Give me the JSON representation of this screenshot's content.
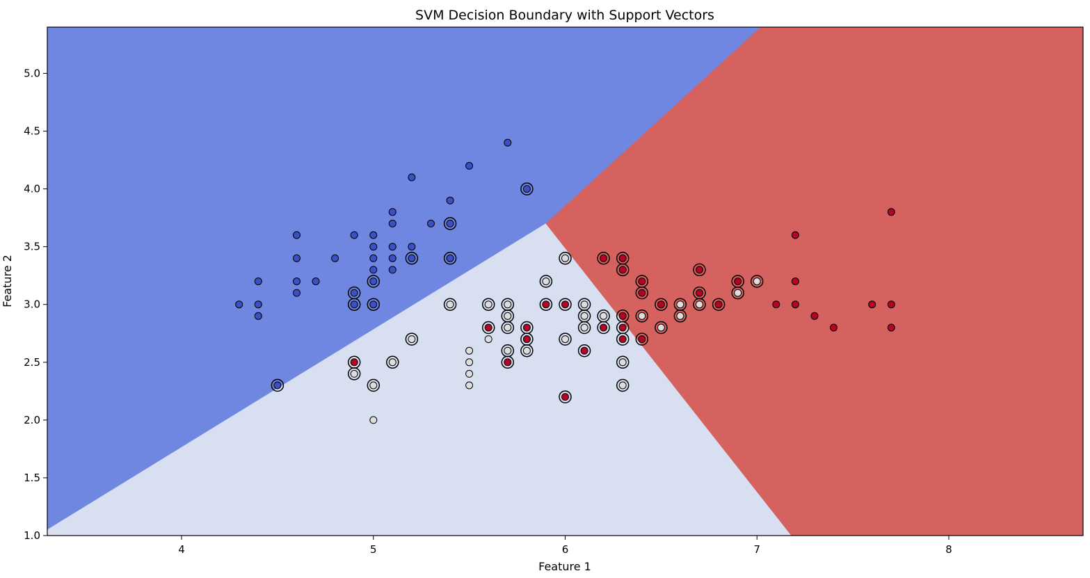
{
  "chart_data": {
    "type": "scatter",
    "title": "SVM Decision Boundary with Support Vectors",
    "xlabel": "Feature 1",
    "ylabel": "Feature 2",
    "xlim": [
      3.3,
      8.7
    ],
    "ylim": [
      1.0,
      5.4
    ],
    "x_ticks": [
      4,
      5,
      6,
      7,
      8
    ],
    "x_tick_labels": [
      "4",
      "5",
      "6",
      "7",
      "8"
    ],
    "y_ticks": [
      1.0,
      1.5,
      2.0,
      2.5,
      3.0,
      3.5,
      4.0,
      4.5,
      5.0
    ],
    "y_tick_labels": [
      "1.0",
      "1.5",
      "2.0",
      "2.5",
      "3.0",
      "3.5",
      "4.0",
      "4.5",
      "5.0"
    ],
    "grid": false,
    "colors": {
      "region_class_0": "#7087e1",
      "region_class_1": "#d7dff0",
      "region_class_2": "#d5625e",
      "class_0": "#3d50c3",
      "class_1": "#dddddd",
      "class_2": "#b40426",
      "marker_edge": "#000000",
      "support_vector_ring": "#000000"
    },
    "decision_regions": [
      {
        "class": 0,
        "polygon": [
          [
            3.3,
            1.05
          ],
          [
            5.9,
            3.7
          ],
          [
            7.02,
            5.4
          ],
          [
            3.3,
            5.4
          ]
        ]
      },
      {
        "class": 1,
        "polygon": [
          [
            3.3,
            1.0
          ],
          [
            3.3,
            1.05
          ],
          [
            5.9,
            3.7
          ],
          [
            7.18,
            1.0
          ]
        ]
      },
      {
        "class": 2,
        "polygon": [
          [
            5.9,
            3.7
          ],
          [
            7.18,
            1.0
          ],
          [
            8.7,
            1.0
          ],
          [
            8.7,
            5.4
          ],
          [
            7.02,
            5.4
          ]
        ]
      }
    ],
    "series": [
      {
        "class": 0,
        "points": [
          [
            4.3,
            3.0
          ],
          [
            4.4,
            3.2
          ],
          [
            4.4,
            3.0
          ],
          [
            4.4,
            2.9
          ],
          [
            4.5,
            2.3
          ],
          [
            4.6,
            3.6
          ],
          [
            4.6,
            3.4
          ],
          [
            4.6,
            3.2
          ],
          [
            4.6,
            3.1
          ],
          [
            4.7,
            3.2
          ],
          [
            4.8,
            3.4
          ],
          [
            4.9,
            3.6
          ],
          [
            4.9,
            3.1
          ],
          [
            4.9,
            3.0
          ],
          [
            5.0,
            3.6
          ],
          [
            5.0,
            3.5
          ],
          [
            5.0,
            3.4
          ],
          [
            5.0,
            3.3
          ],
          [
            5.0,
            3.2
          ],
          [
            5.0,
            3.0
          ],
          [
            5.1,
            3.8
          ],
          [
            5.1,
            3.7
          ],
          [
            5.1,
            3.5
          ],
          [
            5.1,
            3.4
          ],
          [
            5.1,
            3.3
          ],
          [
            5.2,
            4.1
          ],
          [
            5.2,
            3.5
          ],
          [
            5.2,
            3.4
          ],
          [
            5.3,
            3.7
          ],
          [
            5.4,
            3.9
          ],
          [
            5.4,
            3.7
          ],
          [
            5.4,
            3.4
          ],
          [
            5.5,
            4.2
          ],
          [
            5.7,
            4.4
          ],
          [
            5.8,
            4.0
          ]
        ]
      },
      {
        "class": 1,
        "points": [
          [
            4.9,
            2.4
          ],
          [
            5.0,
            2.3
          ],
          [
            5.0,
            2.0
          ],
          [
            5.1,
            2.5
          ],
          [
            5.2,
            2.7
          ],
          [
            5.4,
            3.0
          ],
          [
            5.5,
            2.6
          ],
          [
            5.5,
            2.5
          ],
          [
            5.5,
            2.4
          ],
          [
            5.5,
            2.3
          ],
          [
            5.6,
            3.0
          ],
          [
            5.6,
            2.7
          ],
          [
            5.7,
            3.0
          ],
          [
            5.7,
            2.9
          ],
          [
            5.7,
            2.8
          ],
          [
            5.7,
            2.6
          ],
          [
            5.8,
            2.7
          ],
          [
            5.8,
            2.6
          ],
          [
            5.9,
            3.2
          ],
          [
            6.0,
            3.4
          ],
          [
            6.0,
            2.7
          ],
          [
            6.1,
            3.0
          ],
          [
            6.1,
            2.9
          ],
          [
            6.1,
            2.8
          ],
          [
            6.2,
            2.9
          ],
          [
            6.3,
            2.5
          ],
          [
            6.3,
            2.3
          ],
          [
            6.4,
            2.9
          ],
          [
            6.5,
            2.8
          ],
          [
            6.6,
            3.0
          ],
          [
            6.6,
            2.9
          ],
          [
            6.7,
            3.0
          ],
          [
            6.9,
            3.1
          ],
          [
            7.0,
            3.2
          ]
        ]
      },
      {
        "class": 2,
        "points": [
          [
            4.9,
            2.5
          ],
          [
            5.6,
            2.8
          ],
          [
            5.7,
            2.5
          ],
          [
            5.8,
            2.8
          ],
          [
            5.8,
            2.7
          ],
          [
            5.9,
            3.0
          ],
          [
            6.0,
            3.0
          ],
          [
            6.0,
            2.2
          ],
          [
            6.1,
            2.6
          ],
          [
            6.2,
            3.4
          ],
          [
            6.2,
            2.8
          ],
          [
            6.3,
            3.4
          ],
          [
            6.3,
            3.3
          ],
          [
            6.3,
            2.9
          ],
          [
            6.3,
            2.8
          ],
          [
            6.3,
            2.7
          ],
          [
            6.4,
            3.2
          ],
          [
            6.4,
            3.1
          ],
          [
            6.4,
            2.7
          ],
          [
            6.5,
            3.0
          ],
          [
            6.7,
            3.3
          ],
          [
            6.7,
            3.1
          ],
          [
            6.8,
            3.0
          ],
          [
            6.9,
            3.2
          ],
          [
            7.1,
            3.0
          ],
          [
            7.2,
            3.6
          ],
          [
            7.2,
            3.2
          ],
          [
            7.2,
            3.0
          ],
          [
            7.3,
            2.9
          ],
          [
            7.4,
            2.8
          ],
          [
            7.6,
            3.0
          ],
          [
            7.7,
            3.8
          ],
          [
            7.7,
            3.0
          ],
          [
            7.7,
            2.8
          ]
        ]
      }
    ],
    "support_vectors": [
      [
        4.5,
        2.3
      ],
      [
        4.9,
        3.1
      ],
      [
        4.9,
        3.0
      ],
      [
        5.0,
        3.2
      ],
      [
        5.0,
        3.0
      ],
      [
        5.2,
        3.4
      ],
      [
        5.4,
        3.7
      ],
      [
        5.4,
        3.4
      ],
      [
        5.8,
        4.0
      ],
      [
        4.9,
        2.5
      ],
      [
        4.9,
        2.4
      ],
      [
        5.0,
        2.3
      ],
      [
        5.1,
        2.5
      ],
      [
        5.2,
        2.7
      ],
      [
        5.4,
        3.0
      ],
      [
        5.6,
        3.0
      ],
      [
        5.6,
        2.8
      ],
      [
        5.7,
        3.0
      ],
      [
        5.7,
        2.9
      ],
      [
        5.7,
        2.8
      ],
      [
        5.7,
        2.6
      ],
      [
        5.7,
        2.5
      ],
      [
        5.8,
        2.8
      ],
      [
        5.8,
        2.7
      ],
      [
        5.8,
        2.6
      ],
      [
        5.9,
        3.2
      ],
      [
        5.9,
        3.0
      ],
      [
        6.0,
        3.4
      ],
      [
        6.0,
        3.0
      ],
      [
        6.0,
        2.7
      ],
      [
        6.0,
        2.2
      ],
      [
        6.1,
        3.0
      ],
      [
        6.1,
        2.9
      ],
      [
        6.1,
        2.8
      ],
      [
        6.1,
        2.6
      ],
      [
        6.2,
        3.4
      ],
      [
        6.2,
        2.9
      ],
      [
        6.2,
        2.8
      ],
      [
        6.3,
        3.4
      ],
      [
        6.3,
        3.3
      ],
      [
        6.3,
        2.9
      ],
      [
        6.3,
        2.8
      ],
      [
        6.3,
        2.7
      ],
      [
        6.3,
        2.5
      ],
      [
        6.3,
        2.3
      ],
      [
        6.4,
        3.2
      ],
      [
        6.4,
        3.1
      ],
      [
        6.4,
        2.9
      ],
      [
        6.4,
        2.7
      ],
      [
        6.5,
        3.0
      ],
      [
        6.5,
        2.8
      ],
      [
        6.6,
        3.0
      ],
      [
        6.6,
        2.9
      ],
      [
        6.7,
        3.3
      ],
      [
        6.7,
        3.1
      ],
      [
        6.7,
        3.0
      ],
      [
        6.8,
        3.0
      ],
      [
        6.9,
        3.2
      ],
      [
        6.9,
        3.1
      ],
      [
        7.0,
        3.2
      ]
    ]
  }
}
